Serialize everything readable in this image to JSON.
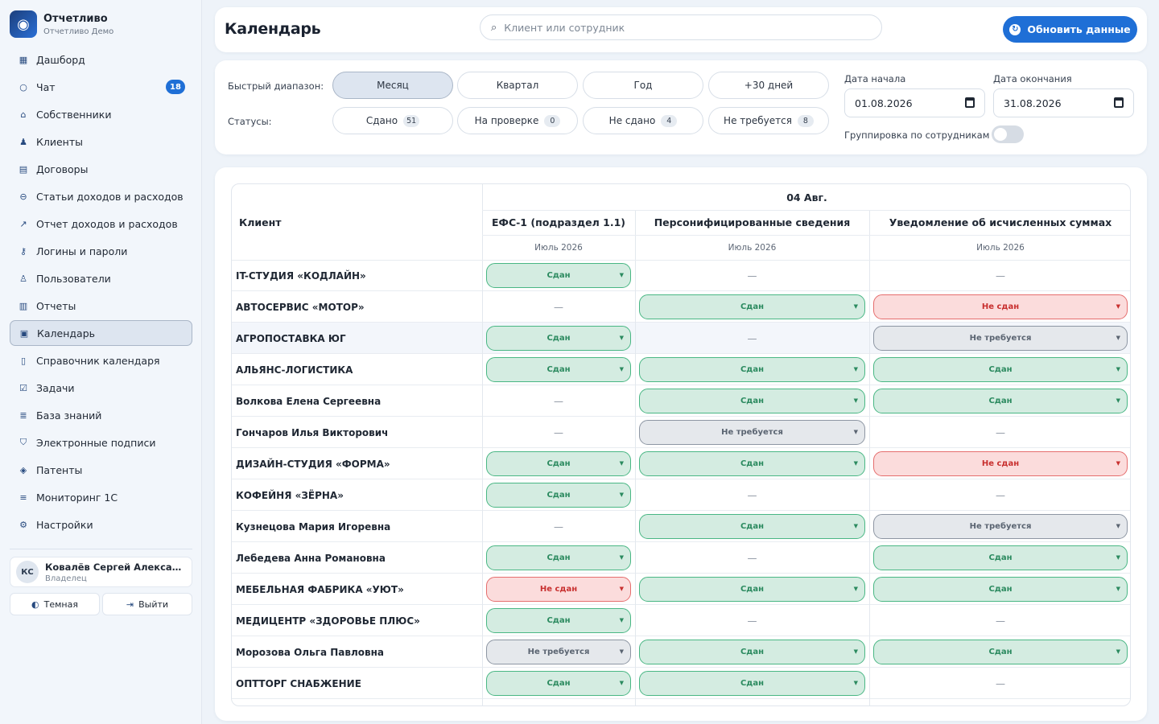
{
  "brand": {
    "title": "Отчетливо",
    "subtitle": "Отчетливо Демо",
    "logo_icon": "owl-logo-icon"
  },
  "nav": [
    {
      "label": "Дашборд",
      "icon": "dashboard-icon"
    },
    {
      "label": "Чат",
      "icon": "chat-icon",
      "badge": "18"
    },
    {
      "label": "Собственники",
      "icon": "owners-icon"
    },
    {
      "label": "Клиенты",
      "icon": "clients-icon"
    },
    {
      "label": "Договоры",
      "icon": "contracts-icon"
    },
    {
      "label": "Статьи доходов и расходов",
      "icon": "income-expense-icon"
    },
    {
      "label": "Отчет доходов и расходов",
      "icon": "chart-line-icon"
    },
    {
      "label": "Логины и пароли",
      "icon": "key-icon"
    },
    {
      "label": "Пользователи",
      "icon": "users-icon"
    },
    {
      "label": "Отчеты",
      "icon": "reports-icon"
    },
    {
      "label": "Календарь",
      "icon": "calendar-icon",
      "active": true
    },
    {
      "label": "Справочник календаря",
      "icon": "book-icon"
    },
    {
      "label": "Задачи",
      "icon": "tasks-icon"
    },
    {
      "label": "База знаний",
      "icon": "knowledge-icon"
    },
    {
      "label": "Электронные подписи",
      "icon": "shield-icon"
    },
    {
      "label": "Патенты",
      "icon": "patent-icon"
    },
    {
      "label": "Мониторинг 1С",
      "icon": "database-icon"
    },
    {
      "label": "Настройки",
      "icon": "gear-icon"
    }
  ],
  "user": {
    "initials": "КС",
    "name": "Ковалёв Сергей Александрович",
    "role": "Владелец"
  },
  "side_buttons": {
    "theme": "Темная",
    "logout": "Выйти"
  },
  "header": {
    "title": "Календарь",
    "search_placeholder": "Клиент или сотрудник",
    "refresh_label": "Обновить данные"
  },
  "filters": {
    "range_label": "Быстрый диапазон:",
    "ranges": [
      {
        "label": "Месяц",
        "active": true
      },
      {
        "label": "Квартал"
      },
      {
        "label": "Год"
      },
      {
        "label": "+30 дней"
      }
    ],
    "status_label": "Статусы:",
    "statuses": [
      {
        "label": "Сдано",
        "count": "51"
      },
      {
        "label": "На проверке",
        "count": "0"
      },
      {
        "label": "Не сдано",
        "count": "4"
      },
      {
        "label": "Не требуется",
        "count": "8"
      }
    ],
    "start_label": "Дата начала",
    "start_value": "01.08.2026",
    "end_label": "Дата окончания",
    "end_value": "31.08.2026",
    "group_label": "Группировка по сотрудникам",
    "group_enabled": false
  },
  "table": {
    "client_header": "Клиент",
    "date_header": "04 Авг.",
    "columns": [
      {
        "title": "ЕФС-1 (подраздел 1.1)",
        "period": "Июль 2026"
      },
      {
        "title": "Персонифицированные сведения",
        "period": "Июль 2026"
      },
      {
        "title": "Уведомление об исчисленных суммах",
        "period": "Июль 2026"
      }
    ],
    "dash": "—",
    "status_colors": {
      "ok": "#d4ece1",
      "bad": "#fbdcdc",
      "na": "#e5e8ec"
    },
    "rows": [
      {
        "client": "IT-СТУДИЯ «КОДЛАЙН»",
        "cells": [
          "Сдан",
          null,
          null
        ]
      },
      {
        "client": "АВТОСЕРВИС «МОТОР»",
        "cells": [
          null,
          "Сдан",
          "Не сдан"
        ]
      },
      {
        "client": "АГРОПОСТАВКА ЮГ",
        "cells": [
          "Сдан",
          null,
          "Не требуется"
        ],
        "highlight": true
      },
      {
        "client": "АЛЬЯНС-ЛОГИСТИКА",
        "cells": [
          "Сдан",
          "Сдан",
          "Сдан"
        ]
      },
      {
        "client": "Волкова Елена Сергеевна",
        "cells": [
          null,
          "Сдан",
          "Сдан"
        ]
      },
      {
        "client": "Гончаров Илья Викторович",
        "cells": [
          null,
          "Не требуется",
          null
        ]
      },
      {
        "client": "ДИЗАЙН-СТУДИЯ «ФОРМА»",
        "cells": [
          "Сдан",
          "Сдан",
          "Не сдан"
        ]
      },
      {
        "client": "КОФЕЙНЯ «ЗЁРНА»",
        "cells": [
          "Сдан",
          null,
          null
        ]
      },
      {
        "client": "Кузнецова Мария Игоревна",
        "cells": [
          null,
          "Сдан",
          "Не требуется"
        ]
      },
      {
        "client": "Лебедева Анна Романовна",
        "cells": [
          "Сдан",
          null,
          "Сдан"
        ]
      },
      {
        "client": "МЕБЕЛЬНАЯ ФАБРИКА «УЮТ»",
        "cells": [
          "Не сдан",
          "Сдан",
          "Сдан"
        ]
      },
      {
        "client": "МЕДИЦЕНТР «ЗДОРОВЬЕ ПЛЮС»",
        "cells": [
          "Сдан",
          null,
          null
        ]
      },
      {
        "client": "Морозова Ольга Павловна",
        "cells": [
          "Не требуется",
          "Сдан",
          "Сдан"
        ]
      },
      {
        "client": "ОПТТОРГ СНАБЖЕНИЕ",
        "cells": [
          "Сдан",
          "Сдан",
          null
        ]
      }
    ]
  }
}
